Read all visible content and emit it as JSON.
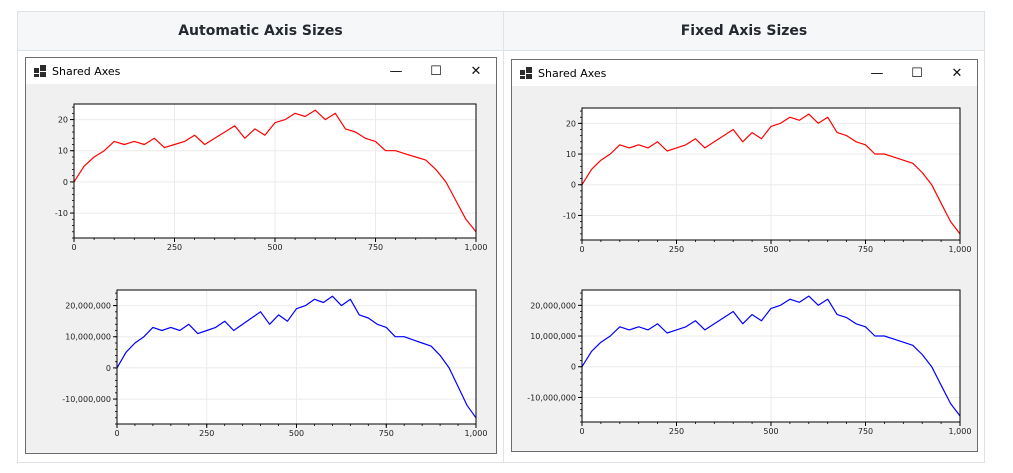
{
  "panels": [
    {
      "header": "Automatic Axis Sizes",
      "window_title": "Shared Axes",
      "controls": {
        "minimize": "—",
        "maximize": "☐",
        "close": "✕"
      }
    },
    {
      "header": "Fixed Axis Sizes",
      "window_title": "Shared Axes",
      "controls": {
        "minimize": "—",
        "maximize": "☐",
        "close": "✕"
      }
    }
  ],
  "chart_data": [
    {
      "type": "line",
      "panel": "Automatic Axis Sizes",
      "position": "top",
      "x_ticks": [
        "0",
        "250",
        "500",
        "750",
        "1,000"
      ],
      "y_ticks": [
        "20",
        "10",
        "0",
        "-10"
      ],
      "xlim": [
        0,
        1000
      ],
      "ylim": [
        -18,
        25
      ],
      "grid": true,
      "series": [
        {
          "color": "#ff0000",
          "x": [
            0,
            25,
            50,
            75,
            100,
            125,
            150,
            175,
            200,
            225,
            250,
            275,
            300,
            325,
            350,
            375,
            400,
            425,
            450,
            475,
            500,
            525,
            550,
            575,
            600,
            625,
            650,
            675,
            700,
            725,
            750,
            775,
            800,
            825,
            850,
            875,
            900,
            925,
            950,
            975,
            1000
          ],
          "y": [
            0,
            5,
            8,
            10,
            13,
            12,
            13,
            12,
            14,
            11,
            12,
            13,
            15,
            12,
            14,
            16,
            18,
            14,
            17,
            15,
            19,
            20,
            22,
            21,
            23,
            20,
            22,
            17,
            16,
            14,
            13,
            10,
            10,
            9,
            8,
            7,
            4,
            0,
            -6,
            -12,
            -16
          ]
        }
      ]
    },
    {
      "type": "line",
      "panel": "Automatic Axis Sizes",
      "position": "bottom",
      "x_ticks": [
        "0",
        "250",
        "500",
        "750",
        "1,000"
      ],
      "y_ticks": [
        "20,000,000",
        "10,000,000",
        "0",
        "-10,000,000"
      ],
      "xlim": [
        0,
        1000
      ],
      "ylim": [
        -18000000,
        25000000
      ],
      "grid": true,
      "series": [
        {
          "color": "#0000ff",
          "x": [
            0,
            25,
            50,
            75,
            100,
            125,
            150,
            175,
            200,
            225,
            250,
            275,
            300,
            325,
            350,
            375,
            400,
            425,
            450,
            475,
            500,
            525,
            550,
            575,
            600,
            625,
            650,
            675,
            700,
            725,
            750,
            775,
            800,
            825,
            850,
            875,
            900,
            925,
            950,
            975,
            1000
          ],
          "y": [
            0,
            5000000,
            8000000,
            10000000,
            13000000,
            12000000,
            13000000,
            12000000,
            14000000,
            11000000,
            12000000,
            13000000,
            15000000,
            12000000,
            14000000,
            16000000,
            18000000,
            14000000,
            17000000,
            15000000,
            19000000,
            20000000,
            22000000,
            21000000,
            23000000,
            20000000,
            22000000,
            17000000,
            16000000,
            14000000,
            13000000,
            10000000,
            10000000,
            9000000,
            8000000,
            7000000,
            4000000,
            0,
            -6000000,
            -12000000,
            -16000000
          ]
        }
      ]
    },
    {
      "type": "line",
      "panel": "Fixed Axis Sizes",
      "position": "top",
      "x_ticks": [
        "0",
        "250",
        "500",
        "750",
        "1,000"
      ],
      "y_ticks": [
        "20",
        "10",
        "0",
        "-10"
      ],
      "xlim": [
        0,
        1000
      ],
      "ylim": [
        -18,
        25
      ],
      "grid": true,
      "series": [
        {
          "color": "#ff0000",
          "x": [
            0,
            25,
            50,
            75,
            100,
            125,
            150,
            175,
            200,
            225,
            250,
            275,
            300,
            325,
            350,
            375,
            400,
            425,
            450,
            475,
            500,
            525,
            550,
            575,
            600,
            625,
            650,
            675,
            700,
            725,
            750,
            775,
            800,
            825,
            850,
            875,
            900,
            925,
            950,
            975,
            1000
          ],
          "y": [
            0,
            5,
            8,
            10,
            13,
            12,
            13,
            12,
            14,
            11,
            12,
            13,
            15,
            12,
            14,
            16,
            18,
            14,
            17,
            15,
            19,
            20,
            22,
            21,
            23,
            20,
            22,
            17,
            16,
            14,
            13,
            10,
            10,
            9,
            8,
            7,
            4,
            0,
            -6,
            -12,
            -16
          ]
        }
      ]
    },
    {
      "type": "line",
      "panel": "Fixed Axis Sizes",
      "position": "bottom",
      "x_ticks": [
        "0",
        "250",
        "500",
        "750",
        "1,000"
      ],
      "y_ticks": [
        "20,000,000",
        "10,000,000",
        "0",
        "-10,000,000"
      ],
      "xlim": [
        0,
        1000
      ],
      "ylim": [
        -18000000,
        25000000
      ],
      "grid": true,
      "series": [
        {
          "color": "#0000ff",
          "x": [
            0,
            25,
            50,
            75,
            100,
            125,
            150,
            175,
            200,
            225,
            250,
            275,
            300,
            325,
            350,
            375,
            400,
            425,
            450,
            475,
            500,
            525,
            550,
            575,
            600,
            625,
            650,
            675,
            700,
            725,
            750,
            775,
            800,
            825,
            850,
            875,
            900,
            925,
            950,
            975,
            1000
          ],
          "y": [
            0,
            5000000,
            8000000,
            10000000,
            13000000,
            12000000,
            13000000,
            12000000,
            14000000,
            11000000,
            12000000,
            13000000,
            15000000,
            12000000,
            14000000,
            16000000,
            18000000,
            14000000,
            17000000,
            15000000,
            19000000,
            20000000,
            22000000,
            21000000,
            23000000,
            20000000,
            22000000,
            17000000,
            16000000,
            14000000,
            13000000,
            10000000,
            10000000,
            9000000,
            8000000,
            7000000,
            4000000,
            0,
            -6000000,
            -12000000,
            -16000000
          ]
        }
      ]
    }
  ]
}
